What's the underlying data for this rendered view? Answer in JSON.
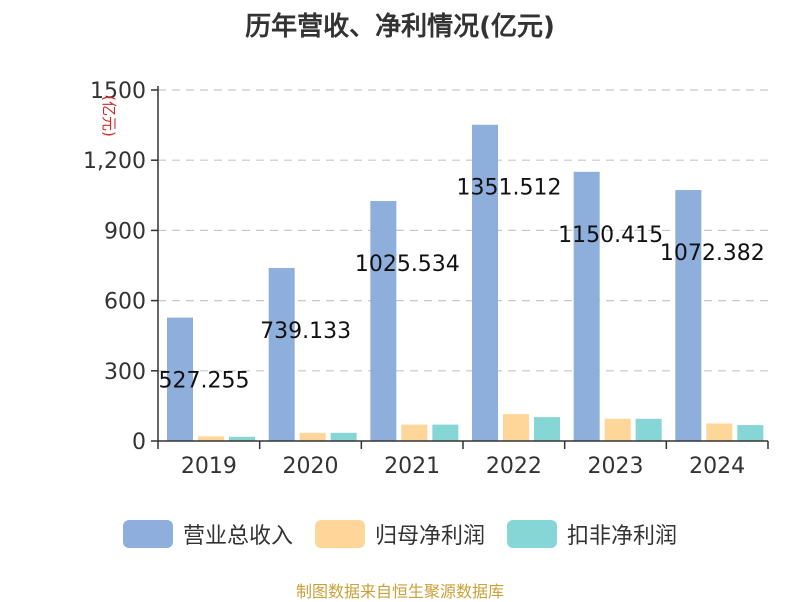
{
  "chart_data": {
    "type": "bar",
    "title": "历年营收、净利情况(亿元)",
    "ylabel": "(亿元)",
    "ylim": [
      0,
      1500
    ],
    "yticks": [
      0,
      300,
      600,
      900,
      1200,
      1500
    ],
    "ytick_labels": [
      "0",
      "300",
      "600",
      "900",
      "1,200",
      "1500"
    ],
    "categories": [
      "2019",
      "2020",
      "2021",
      "2022",
      "2023",
      "2024"
    ],
    "series": [
      {
        "name": "营业总收入",
        "color": "#8eaedc",
        "values": [
          527.255,
          739.133,
          1025.534,
          1351.512,
          1150.415,
          1072.382
        ],
        "labels": [
          "527.255",
          "739.133",
          "1025.534",
          "1351.512",
          "1150.415",
          "1072.382"
        ]
      },
      {
        "name": "归母净利润",
        "color": "#ffd699",
        "values": [
          20,
          35,
          70,
          115,
          95,
          75
        ]
      },
      {
        "name": "扣非净利润",
        "color": "#86d6d6",
        "values": [
          18,
          35,
          70,
          102,
          95,
          68
        ]
      }
    ],
    "grid": true,
    "legend_position": "bottom"
  },
  "source": "制图数据来自恒生聚源数据库"
}
